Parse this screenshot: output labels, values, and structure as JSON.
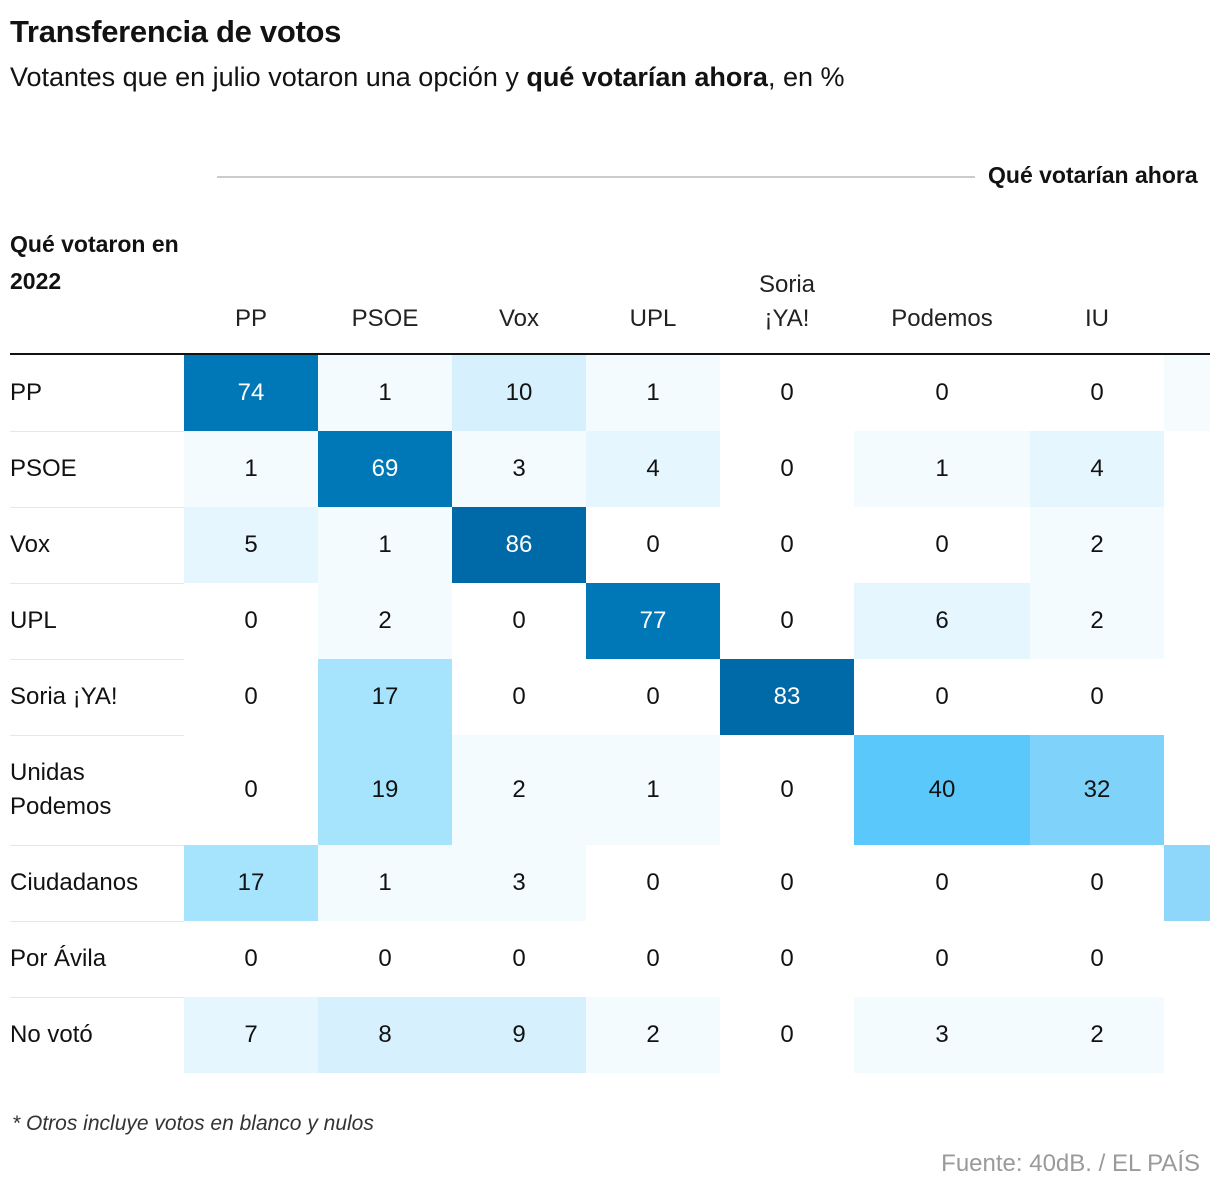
{
  "title": "Transferencia de votos",
  "subtitle": {
    "pre": "Votantes que en julio votaron una opción y ",
    "bold": "qué votarían ahora",
    "post": ", en %"
  },
  "column_group_label": "Qué votarían ahora",
  "row_header_title": "Qué votaron en 2022",
  "note": "* Otros incluye votos en blanco y nulos",
  "source": "Fuente: 40dB. / EL PAÍS",
  "colors": {
    "scale": [
      "#ffffff",
      "#f2fafe",
      "#e2f4fd",
      "#d0eefc",
      "#a6e3fc",
      "#7fd3fb",
      "#5bc8fb",
      "#0078b8",
      "#006aa8"
    ]
  },
  "chart_data": {
    "type": "heatmap",
    "title": "Transferencia de votos",
    "subtitle": "Votantes que en julio votaron una opción y qué votarían ahora, en %",
    "xlabel": "Qué votarían ahora",
    "ylabel": "Qué votaron en 2022",
    "columns": [
      "PP",
      "PSOE",
      "Vox",
      "UPL",
      "Soria ¡YA!",
      "Podemos",
      "IU"
    ],
    "rows": [
      "PP",
      "PSOE",
      "Vox",
      "UPL",
      "Soria ¡YA!",
      "Unidas Podemos",
      "Ciudadanos",
      "Por Ávila",
      "No votó"
    ],
    "values": [
      [
        74,
        1,
        10,
        1,
        0,
        0,
        0
      ],
      [
        1,
        69,
        3,
        4,
        0,
        1,
        4
      ],
      [
        5,
        1,
        86,
        0,
        0,
        0,
        2
      ],
      [
        0,
        2,
        0,
        77,
        0,
        6,
        2
      ],
      [
        0,
        17,
        0,
        0,
        83,
        0,
        0
      ],
      [
        0,
        19,
        2,
        1,
        0,
        40,
        32
      ],
      [
        17,
        1,
        3,
        0,
        0,
        0,
        0
      ],
      [
        0,
        0,
        0,
        0,
        0,
        0,
        0
      ],
      [
        7,
        8,
        9,
        2,
        0,
        3,
        2
      ]
    ],
    "partial_column_shading": [
      0.03,
      0.0,
      0.0,
      0.0,
      0.0,
      0.0,
      0.35,
      0.0,
      0.0
    ]
  }
}
